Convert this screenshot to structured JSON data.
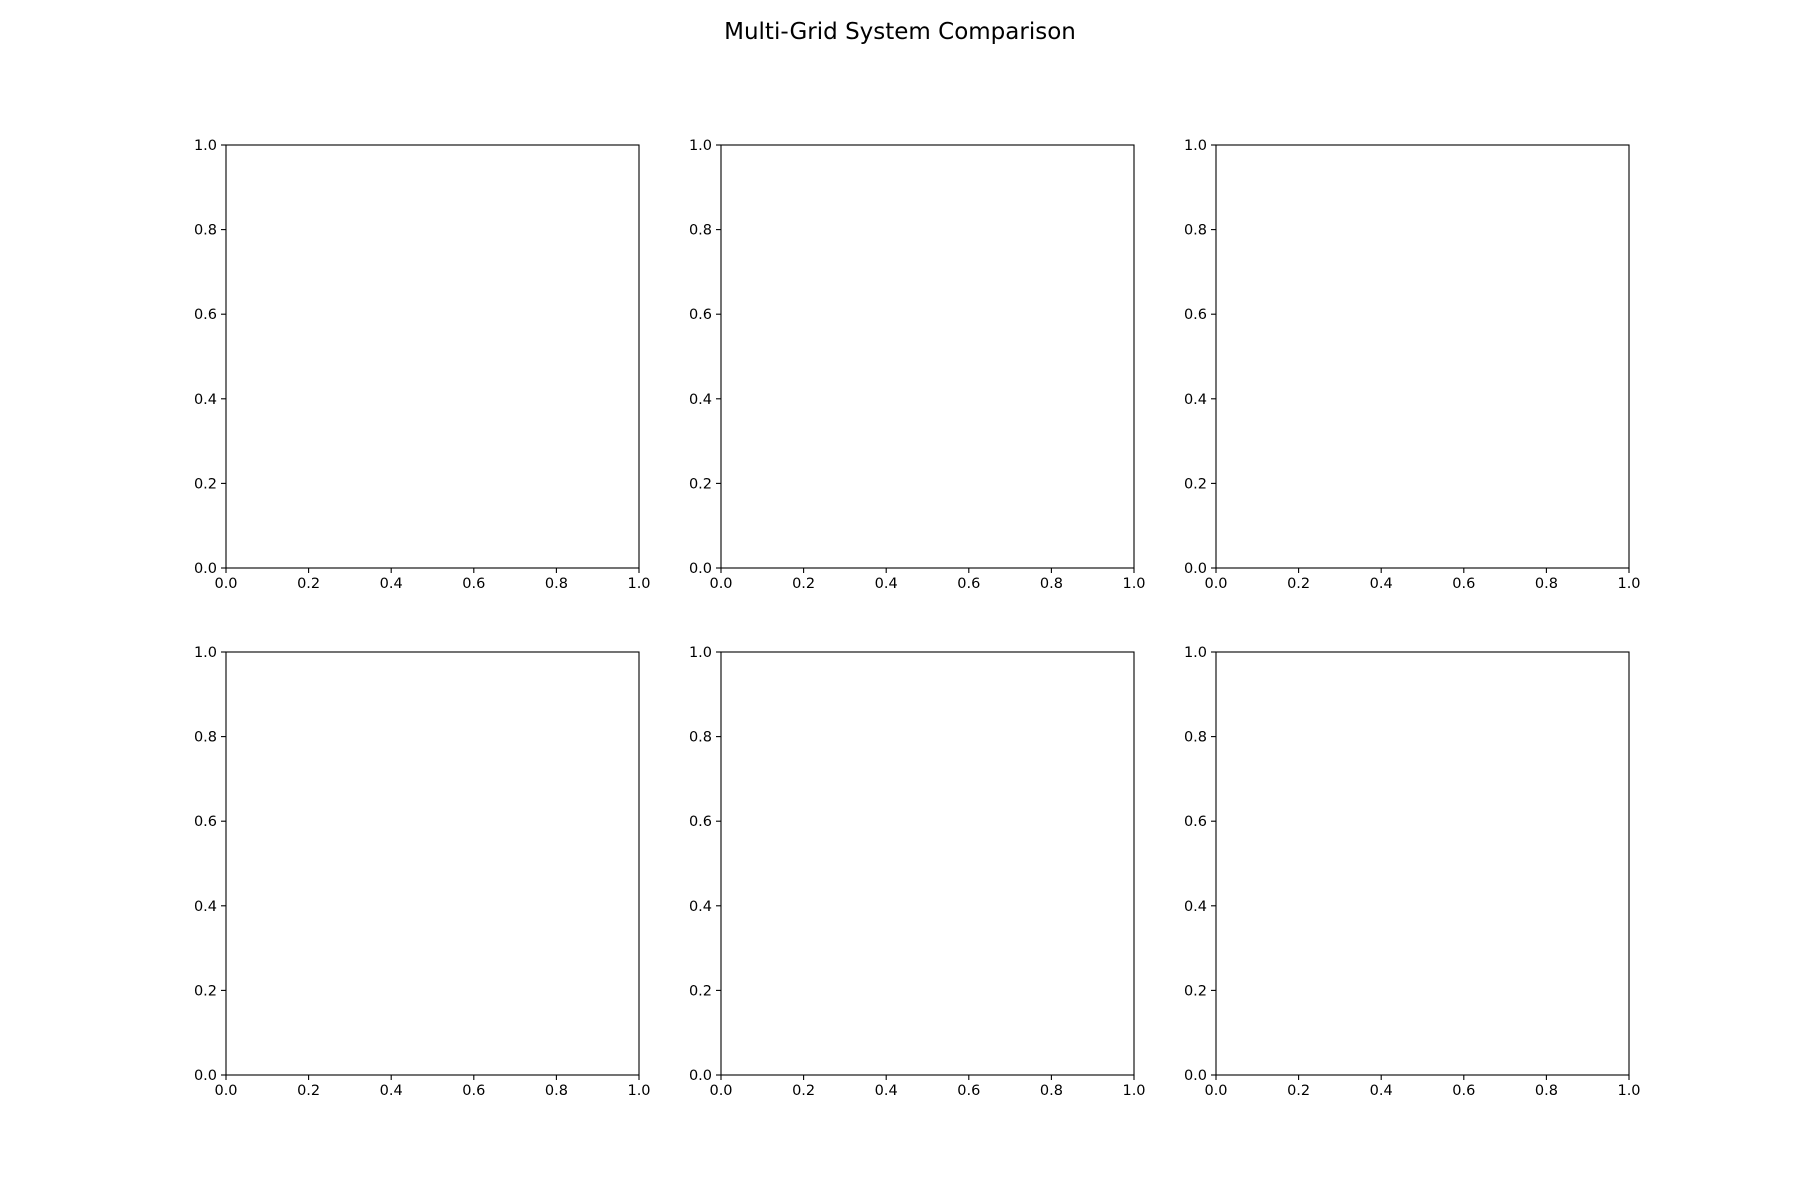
{
  "figure": {
    "title": "Multi-Grid System Comparison"
  },
  "chart_data": [
    {
      "type": "line",
      "series": [],
      "xlim": [
        0.0,
        1.0
      ],
      "ylim": [
        0.0,
        1.0
      ],
      "xticks": [
        "0.0",
        "0.2",
        "0.4",
        "0.6",
        "0.8",
        "1.0"
      ],
      "yticks": [
        "0.0",
        "0.2",
        "0.4",
        "0.6",
        "0.8",
        "1.0"
      ],
      "grid": false
    },
    {
      "type": "line",
      "series": [],
      "xlim": [
        0.0,
        1.0
      ],
      "ylim": [
        0.0,
        1.0
      ],
      "xticks": [
        "0.0",
        "0.2",
        "0.4",
        "0.6",
        "0.8",
        "1.0"
      ],
      "yticks": [
        "0.0",
        "0.2",
        "0.4",
        "0.6",
        "0.8",
        "1.0"
      ],
      "grid": false
    },
    {
      "type": "line",
      "series": [],
      "xlim": [
        0.0,
        1.0
      ],
      "ylim": [
        0.0,
        1.0
      ],
      "xticks": [
        "0.0",
        "0.2",
        "0.4",
        "0.6",
        "0.8",
        "1.0"
      ],
      "yticks": [
        "0.0",
        "0.2",
        "0.4",
        "0.6",
        "0.8",
        "1.0"
      ],
      "grid": false
    },
    {
      "type": "line",
      "series": [],
      "xlim": [
        0.0,
        1.0
      ],
      "ylim": [
        0.0,
        1.0
      ],
      "xticks": [
        "0.0",
        "0.2",
        "0.4",
        "0.6",
        "0.8",
        "1.0"
      ],
      "yticks": [
        "0.0",
        "0.2",
        "0.4",
        "0.6",
        "0.8",
        "1.0"
      ],
      "grid": false
    },
    {
      "type": "line",
      "series": [],
      "xlim": [
        0.0,
        1.0
      ],
      "ylim": [
        0.0,
        1.0
      ],
      "xticks": [
        "0.0",
        "0.2",
        "0.4",
        "0.6",
        "0.8",
        "1.0"
      ],
      "yticks": [
        "0.0",
        "0.2",
        "0.4",
        "0.6",
        "0.8",
        "1.0"
      ],
      "grid": false
    },
    {
      "type": "line",
      "series": [],
      "xlim": [
        0.0,
        1.0
      ],
      "ylim": [
        0.0,
        1.0
      ],
      "xticks": [
        "0.0",
        "0.2",
        "0.4",
        "0.6",
        "0.8",
        "1.0"
      ],
      "yticks": [
        "0.0",
        "0.2",
        "0.4",
        "0.6",
        "0.8",
        "1.0"
      ],
      "grid": false
    }
  ]
}
